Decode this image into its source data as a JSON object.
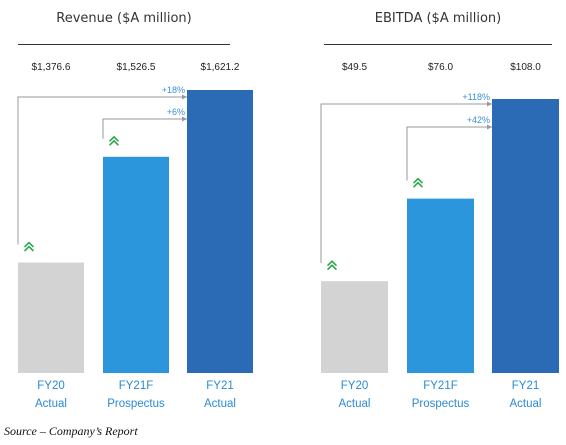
{
  "chart_data": [
    {
      "type": "bar",
      "title": "Revenue  ($A million)",
      "categories": [
        "FY20 Actual",
        "FY21F Prospectus",
        "FY21 Actual"
      ],
      "category_lines": [
        [
          "FY20",
          "Actual"
        ],
        [
          "FY21F",
          "Prospectus"
        ],
        [
          "FY21",
          "Actual"
        ]
      ],
      "values": [
        1376.6,
        1526.5,
        1621.2
      ],
      "value_labels": [
        "$1,376.6",
        "$1,526.5",
        "$1,621.2"
      ],
      "growth": [
        {
          "from": 0,
          "label": "+18%"
        },
        {
          "from": 1,
          "label": "+6%"
        }
      ],
      "bar_colors": [
        "#d3d3d3",
        "#2b96dc",
        "#2b6bb6"
      ]
    },
    {
      "type": "bar",
      "title": "EBITDA  ($A million)",
      "categories": [
        "FY20 Actual",
        "FY21F Prospectus",
        "FY21 Actual"
      ],
      "category_lines": [
        [
          "FY20",
          "Actual"
        ],
        [
          "FY21F",
          "Prospectus"
        ],
        [
          "FY21",
          "Actual"
        ]
      ],
      "values": [
        49.5,
        76.0,
        108.0
      ],
      "value_labels": [
        "$49.5",
        "$76.0",
        "$108.0"
      ],
      "growth": [
        {
          "from": 0,
          "label": "+118%"
        },
        {
          "from": 1,
          "label": "+42%"
        }
      ],
      "bar_colors": [
        "#d3d3d3",
        "#2b96dc",
        "#2b6bb6"
      ]
    }
  ],
  "source": "Source – Company’s Report",
  "colors": {
    "arrow": "#2aa84a",
    "bracket": "#9a9a9a",
    "label_blue": "#2a8ad6"
  }
}
